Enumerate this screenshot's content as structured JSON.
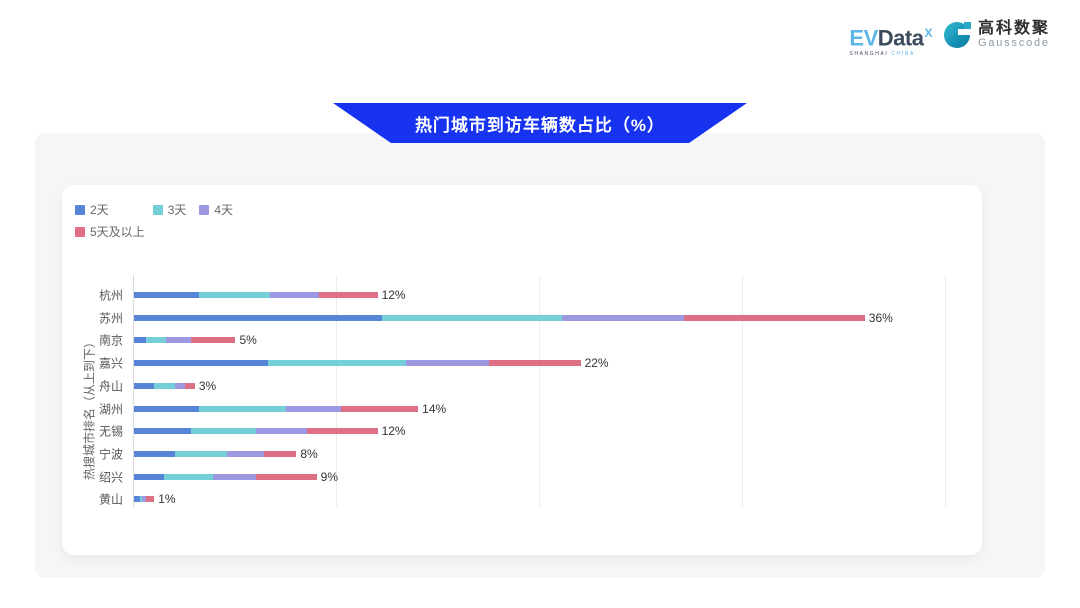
{
  "brand": {
    "evdata": {
      "ev": "EV",
      "data": "Data",
      "sup": "X",
      "sub1": "SHANGHAI",
      "sub2": "CHINA"
    },
    "gausscode": {
      "cn": "高科数聚",
      "en": "Gausscode"
    }
  },
  "banner": {
    "title": "热门城市到访车辆数占比（%）",
    "color": "#1733ef"
  },
  "chart_data": {
    "type": "bar",
    "orientation": "horizontal",
    "stacked": true,
    "title": "热门城市到访车辆数占比（%）",
    "xlabel": "",
    "ylabel": "热搜城市排名（从上到下）",
    "xlim": [
      0,
      40
    ],
    "grid": true,
    "gridline_values": [
      0,
      10,
      20,
      30,
      40
    ],
    "legend_position": "top-left",
    "categories": [
      "杭州",
      "苏州",
      "南京",
      "嘉兴",
      "舟山",
      "湖州",
      "无锡",
      "宁波",
      "绍兴",
      "黄山"
    ],
    "totals": [
      12,
      36,
      5,
      22,
      3,
      14,
      12,
      8,
      9,
      1
    ],
    "totals_label": [
      "12%",
      "36%",
      "5%",
      "22%",
      "3%",
      "14%",
      "12%",
      "8%",
      "9%",
      "1%"
    ],
    "series": [
      {
        "name": "2天",
        "color": "#5885d8",
        "values": [
          3.2,
          12.2,
          0.6,
          6.6,
          1.0,
          3.2,
          2.8,
          2.0,
          1.5,
          0.3
        ]
      },
      {
        "name": "3天",
        "color": "#74cfd8",
        "values": [
          3.5,
          8.9,
          1.0,
          6.8,
          1.0,
          4.3,
          3.2,
          2.6,
          2.4,
          0.1
        ]
      },
      {
        "name": "4天",
        "color": "#9c99e2",
        "values": [
          2.4,
          6.0,
          1.2,
          4.1,
          0.5,
          2.7,
          2.5,
          1.8,
          2.1,
          0.2
        ]
      },
      {
        "name": "5天及以上",
        "color": "#de7086",
        "values": [
          2.9,
          8.9,
          2.2,
          4.5,
          0.5,
          3.8,
          3.5,
          1.6,
          3.0,
          0.4
        ]
      }
    ]
  }
}
